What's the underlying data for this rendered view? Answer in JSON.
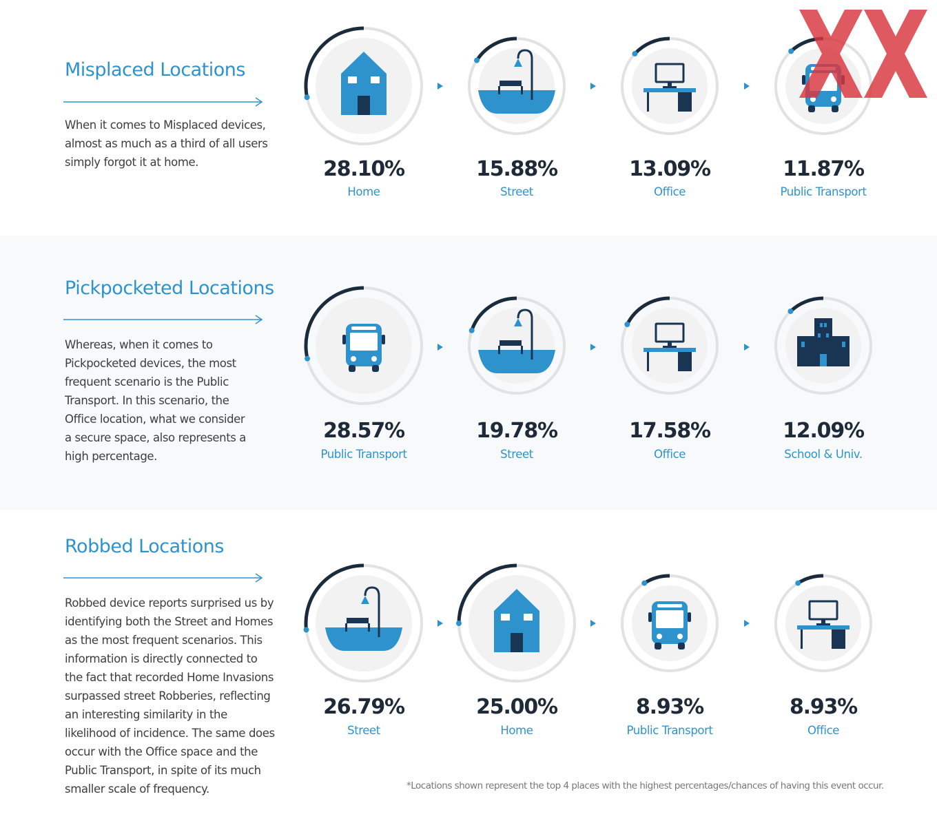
{
  "colors": {
    "accent": "#2e93cd",
    "dark_arc": "#1a2b3c",
    "ring_track": "#e2e2e2",
    "icon_fill": "#2e93cd",
    "icon_dark": "#1a3554",
    "watermark": "#d9363e"
  },
  "sections": [
    {
      "title": "Misplaced Locations",
      "description_lines": [
        "When it comes to Misplaced devices,",
        "almost as much as a third of all users",
        "simply forgot it at home."
      ],
      "items": [
        {
          "percent": "28.10%",
          "label": "Home",
          "value": 28.1,
          "icon": "house-icon"
        },
        {
          "percent": "15.88%",
          "label": "Street",
          "value": 15.88,
          "icon": "street-lamp-icon"
        },
        {
          "percent": "13.09%",
          "label": "Office",
          "value": 13.09,
          "icon": "office-desk-icon"
        },
        {
          "percent": "11.87%",
          "label": "Public Transport",
          "value": 11.87,
          "icon": "bus-icon"
        }
      ]
    },
    {
      "title": "Pickpocketed Locations",
      "description_lines": [
        "Whereas, when it comes to",
        "Pickpocketed devices, the most",
        "frequent scenario is the Public",
        "Transport. In this scenario, the",
        "Office location, what we consider",
        "a secure space, also represents a",
        "high percentage."
      ],
      "items": [
        {
          "percent": "28.57%",
          "label": "Public Transport",
          "value": 28.57,
          "icon": "bus-icon"
        },
        {
          "percent": "19.78%",
          "label": "Street",
          "value": 19.78,
          "icon": "street-lamp-icon"
        },
        {
          "percent": "17.58%",
          "label": "Office",
          "value": 17.58,
          "icon": "office-desk-icon"
        },
        {
          "percent": "12.09%",
          "label": "School & Univ.",
          "value": 12.09,
          "icon": "school-building-icon"
        }
      ]
    },
    {
      "title": "Robbed Locations",
      "description_lines": [
        "Robbed device reports surprised us by",
        "identifying  both the Street and Homes",
        "as the most frequent scenarios. This",
        "information is directly connected to",
        "the fact that recorded Home Invasions",
        "surpassed street Robberies, reflecting",
        "an interesting similarity in the",
        "likelihood of incidence. The same does",
        "occur with the Office space and the",
        "Public Transport, in spite of its much",
        "smaller scale of frequency."
      ],
      "items": [
        {
          "percent": "26.79%",
          "label": "Street",
          "value": 26.79,
          "icon": "street-lamp-icon"
        },
        {
          "percent": "25.00%",
          "label": "Home",
          "value": 25.0,
          "icon": "house-icon"
        },
        {
          "percent": "8.93%",
          "label": "Public Transport",
          "value": 8.93,
          "icon": "bus-icon"
        },
        {
          "percent": "8.93%",
          "label": "Office",
          "value": 8.93,
          "icon": "office-desk-icon"
        }
      ]
    }
  ],
  "footnote": "*Locations shown represent the top 4 places with the highest percentages/chances of having this event occur.",
  "watermark_icon": "xx-watermark-icon"
}
